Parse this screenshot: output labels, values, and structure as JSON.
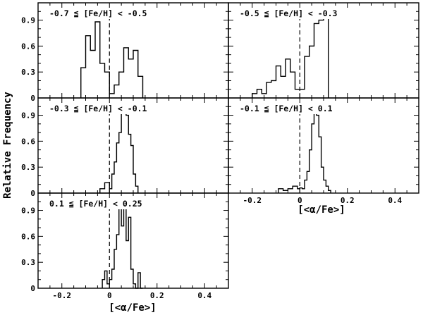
{
  "chart_data": {
    "type": "histogram",
    "ylabel": "Relative Frequency",
    "xlabel": "[<α/Fe>]",
    "xlim": [
      -0.3,
      0.5
    ],
    "ylim": [
      0,
      1.1
    ],
    "xticks": [
      "-0.2",
      "0",
      "0.2",
      "0.4"
    ],
    "yticks": [
      "0",
      "0.3",
      "0.6",
      "0.9"
    ],
    "panels": [
      {
        "label": "-0.7 ≦ [Fe/H] < -0.5",
        "bin_edges": [
          -0.12,
          -0.1,
          -0.08,
          -0.06,
          -0.04,
          -0.02,
          0.0,
          0.02,
          0.04,
          0.06,
          0.08,
          0.1,
          0.12,
          0.14
        ],
        "values": [
          0.35,
          0.72,
          0.55,
          0.88,
          0.4,
          0.3,
          0.05,
          0.15,
          0.3,
          0.58,
          0.45,
          0.55,
          0.25
        ]
      },
      {
        "label": "-0.5 ≦ [Fe/H] < -0.3",
        "bin_edges": [
          -0.2,
          -0.18,
          -0.16,
          -0.14,
          -0.12,
          -0.1,
          -0.08,
          -0.06,
          -0.04,
          -0.02,
          0.0,
          0.02,
          0.04,
          0.06,
          0.08,
          0.1,
          0.12
        ],
        "values": [
          0.05,
          0.1,
          0.05,
          0.18,
          0.2,
          0.37,
          0.25,
          0.45,
          0.3,
          0.1,
          0.1,
          0.48,
          0.6,
          0.86,
          0.9,
          0.97
        ]
      },
      {
        "label": "-0.3 ≦ [Fe/H] < -0.1",
        "bin_edges": [
          -0.04,
          -0.02,
          0.0,
          0.01,
          0.02,
          0.03,
          0.04,
          0.05,
          0.06,
          0.07,
          0.08,
          0.09,
          0.1,
          0.11,
          0.12
        ],
        "values": [
          0.05,
          0.12,
          0.05,
          0.22,
          0.36,
          0.58,
          0.7,
          0.92,
          1.0,
          0.9,
          0.68,
          0.55,
          0.22,
          0.08
        ]
      },
      {
        "label": "-0.1 ≦ [Fe/H] < 0.1",
        "bin_edges": [
          -0.09,
          -0.07,
          -0.05,
          -0.03,
          -0.01,
          0.0,
          0.01,
          0.02,
          0.03,
          0.04,
          0.05,
          0.06,
          0.07,
          0.08,
          0.09,
          0.1,
          0.11,
          0.12,
          0.13
        ],
        "values": [
          0.05,
          0.03,
          0.05,
          0.08,
          0.05,
          0.06,
          0.05,
          0.15,
          0.25,
          0.5,
          0.8,
          0.97,
          0.9,
          0.65,
          0.3,
          0.15,
          0.08,
          0.03
        ]
      },
      {
        "label": "0.1 ≦ [Fe/H] < 0.25",
        "bin_edges": [
          -0.03,
          -0.02,
          -0.01,
          0.0,
          0.01,
          0.02,
          0.03,
          0.04,
          0.05,
          0.06,
          0.07,
          0.08,
          0.09,
          0.1,
          0.11,
          0.12,
          0.13,
          0.14
        ],
        "values": [
          0.1,
          0.2,
          0.05,
          0.1,
          0.22,
          0.45,
          0.62,
          1.0,
          0.72,
          0.98,
          0.55,
          0.82,
          0.22,
          0.05,
          0.0,
          0.18,
          0.0
        ]
      }
    ],
    "reference_line_x": 0.0
  }
}
